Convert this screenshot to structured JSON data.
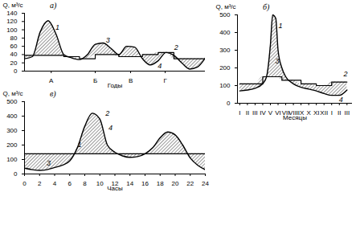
{
  "chart_data": [
    {
      "type": "line",
      "title": "а)",
      "x_label": "Годы",
      "y_label": "Q, м³/с",
      "x": [
        0,
        1,
        2,
        3,
        4,
        5,
        6,
        7,
        8,
        9,
        10,
        11,
        12,
        13,
        14,
        15,
        16,
        17,
        18,
        19,
        20,
        21,
        22,
        23
      ],
      "series": [
        {
          "type": "curve",
          "color": "#000000",
          "line_style": "solid",
          "values": [
            30,
            35,
            95,
            122,
            90,
            40,
            32,
            28,
            40,
            65,
            68,
            55,
            40,
            60,
            58,
            30,
            15,
            25,
            45,
            38,
            20,
            5,
            10,
            32
          ]
        },
        {
          "type": "step",
          "color": "#000000",
          "line_style": "solid",
          "values": [
            38,
            38,
            38,
            38,
            38,
            35,
            35,
            30,
            30,
            40,
            40,
            40,
            35,
            35,
            35,
            40,
            40,
            45,
            45,
            30,
            30,
            30,
            30,
            30
          ]
        }
      ],
      "xlim": [
        0,
        23
      ],
      "xticks": [
        {
          "value": 3.4,
          "label": "А"
        },
        {
          "value": 9,
          "label": "Б"
        },
        {
          "value": 13.5,
          "label": "В"
        },
        {
          "value": 17.9,
          "label": "Г"
        }
      ],
      "ylim": [
        0,
        140
      ],
      "yticks": [
        0,
        20,
        40,
        60,
        80,
        100,
        120,
        140
      ],
      "annotations": [
        {
          "text": "1",
          "x": 4.2,
          "y": 105
        },
        {
          "text": "3",
          "x": 10.6,
          "y": 75
        },
        {
          "text": "2",
          "x": 19.3,
          "y": 58
        },
        {
          "text": "4",
          "x": 17.2,
          "y": 12
        }
      ]
    },
    {
      "type": "line",
      "title": "б)",
      "x_label": "Месяцы",
      "y_label": "Q, м³/с",
      "x": [
        0,
        1,
        2,
        3,
        3.5,
        4,
        4.3,
        4.7,
        5,
        5.5,
        6,
        7,
        8,
        9,
        10,
        11,
        12,
        13,
        14
      ],
      "series": [
        {
          "type": "curve",
          "color": "#000000",
          "line_style": "solid",
          "values": [
            70,
            75,
            85,
            110,
            150,
            330,
            500,
            480,
            300,
            200,
            150,
            110,
            90,
            80,
            70,
            55,
            45,
            45,
            75
          ]
        },
        {
          "type": "step",
          "color": "#000000",
          "line_style": "solid",
          "values": [
            110,
            110,
            110,
            150,
            150,
            150,
            150,
            150,
            150,
            130,
            130,
            130,
            110,
            110,
            100,
            100,
            120,
            120,
            120
          ]
        }
      ],
      "xlim": [
        -0.3,
        14.7
      ],
      "xticks": [
        {
          "value": 0,
          "label": "I"
        },
        {
          "value": 1,
          "label": "II"
        },
        {
          "value": 2,
          "label": "III"
        },
        {
          "value": 3,
          "label": "IV"
        },
        {
          "value": 4,
          "label": "V"
        },
        {
          "value": 5,
          "label": "VI"
        },
        {
          "value": 6,
          "label": "VII"
        },
        {
          "value": 7,
          "label": "VIII"
        },
        {
          "value": 8,
          "label": "IX"
        },
        {
          "value": 9,
          "label": "X"
        },
        {
          "value": 10,
          "label": "XI"
        },
        {
          "value": 11,
          "label": "XII"
        },
        {
          "value": 12,
          "label": "I"
        },
        {
          "value": 13,
          "label": "II"
        },
        {
          "value": 14,
          "label": "III"
        }
      ],
      "ylim": [
        0,
        500
      ],
      "yticks": [
        0,
        100,
        200,
        300,
        400,
        500
      ],
      "annotations": [
        {
          "text": "1",
          "x": 5.3,
          "y": 440
        },
        {
          "text": "3",
          "x": 4.9,
          "y": 240
        },
        {
          "text": "2",
          "x": 13.8,
          "y": 165
        },
        {
          "text": "4",
          "x": 13.2,
          "y": 20
        }
      ]
    },
    {
      "type": "line",
      "title": "в)",
      "x_label": "Часы",
      "y_label": "Q, м³/с",
      "x": [
        0,
        1,
        2,
        3,
        4,
        5,
        6,
        7,
        8,
        9,
        10,
        11,
        12,
        13,
        14,
        15,
        16,
        17,
        18,
        19,
        20,
        21,
        22,
        23,
        24
      ],
      "series": [
        {
          "type": "curve",
          "color": "#000000",
          "line_style": "solid",
          "values": [
            40,
            30,
            25,
            30,
            45,
            60,
            90,
            180,
            330,
            420,
            380,
            200,
            150,
            125,
            115,
            120,
            140,
            180,
            250,
            290,
            270,
            200,
            110,
            60,
            30
          ]
        },
        {
          "type": "step",
          "color": "#000000",
          "line_style": "solid",
          "values": [
            140,
            140,
            140,
            140,
            140,
            140,
            140,
            140,
            140,
            140,
            140,
            140,
            140,
            140,
            140,
            140,
            140,
            140,
            140,
            140,
            140,
            140,
            140,
            140,
            140
          ]
        }
      ],
      "xlim": [
        0,
        24
      ],
      "xticks": [
        0,
        2,
        4,
        6,
        8,
        10,
        12,
        14,
        16,
        18,
        20,
        22,
        24
      ],
      "ylim": [
        0,
        500
      ],
      "yticks": [
        0,
        100,
        200,
        300,
        400,
        500
      ],
      "annotations": [
        {
          "text": "1",
          "x": 7.3,
          "y": 200
        },
        {
          "text": "3",
          "x": 3.2,
          "y": 75
        },
        {
          "text": "2",
          "x": 11,
          "y": 420
        },
        {
          "text": "4",
          "x": 11.4,
          "y": 320
        }
      ]
    }
  ]
}
